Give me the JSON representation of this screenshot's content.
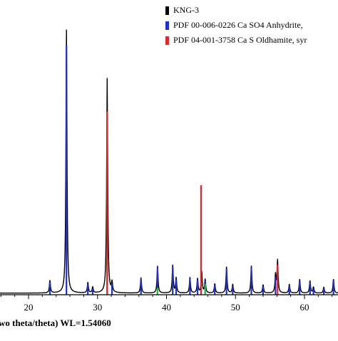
{
  "chart_data": {
    "type": "line",
    "xlabel": "wo theta/theta) WL=1.54060",
    "x_ticks": [
      20,
      30,
      40,
      50,
      60
    ],
    "xlim": [
      13.5,
      67.3
    ],
    "ylim": [
      0,
      100
    ],
    "grid": false,
    "legend_position": "top-right",
    "legend": [
      {
        "label": "KNG-3",
        "color": "#000000"
      },
      {
        "label": "PDF 00-006-0226 Ca SO4 Anhydrite,",
        "color": "#1f2fd1"
      },
      {
        "label": "PDF 04-001-3758 Ca S Oldhamite, syr",
        "color": "#e3262a"
      }
    ],
    "series": [
      {
        "name": "KNG-3",
        "color": "#000000",
        "x": [
          23.1,
          25.5,
          28.6,
          29.3,
          31.4,
          32.1,
          36.3,
          38.7,
          40.9,
          41.4,
          43.4,
          44.5,
          45.1,
          45.6,
          47.0,
          48.7,
          49.6,
          52.3,
          54.0,
          55.8,
          56.1,
          57.8,
          59.3,
          60.8,
          61.3,
          62.8,
          64.2
        ],
        "y": [
          4.8,
          100,
          4.0,
          2.3,
          81.6,
          3.8,
          5.9,
          10.3,
          10.6,
          5.8,
          6.0,
          5.5,
          8.1,
          5.2,
          3.6,
          10.0,
          3.4,
          10.4,
          3.2,
          6.9,
          12.4,
          3.4,
          5.3,
          4.7,
          2.3,
          2.3,
          5.3
        ]
      },
      {
        "name": "PDF 00-006-0226 Ca SO4 Anhydrite,",
        "color": "#1f2fd1",
        "x": [
          23.1,
          25.5,
          28.6,
          29.3,
          31.4,
          32.1,
          36.3,
          38.7,
          40.9,
          41.4,
          43.4,
          44.5,
          45.6,
          47.0,
          48.7,
          49.6,
          52.3,
          54.0,
          55.8,
          57.8,
          59.3,
          60.8,
          61.3,
          62.8,
          64.2
        ],
        "y": [
          4.8,
          94.5,
          4.0,
          2.3,
          12.7,
          3.8,
          5.9,
          10.3,
          10.6,
          5.8,
          6.0,
          5.5,
          5.2,
          3.6,
          10.0,
          3.4,
          10.4,
          3.2,
          6.9,
          3.4,
          5.3,
          4.7,
          2.3,
          2.3,
          5.3
        ]
      },
      {
        "name": "PDF 04-001-3758 Ca S Oldhamite, syr",
        "color": "#e3262a",
        "x": [
          31.4,
          45.0,
          56.1
        ],
        "y": [
          69.6,
          41.6,
          11.4
        ]
      },
      {
        "name": "",
        "color": "#22c43a",
        "x": [
          38.7,
          45.6
        ],
        "y": [
          2.6,
          4.1
        ]
      }
    ]
  }
}
